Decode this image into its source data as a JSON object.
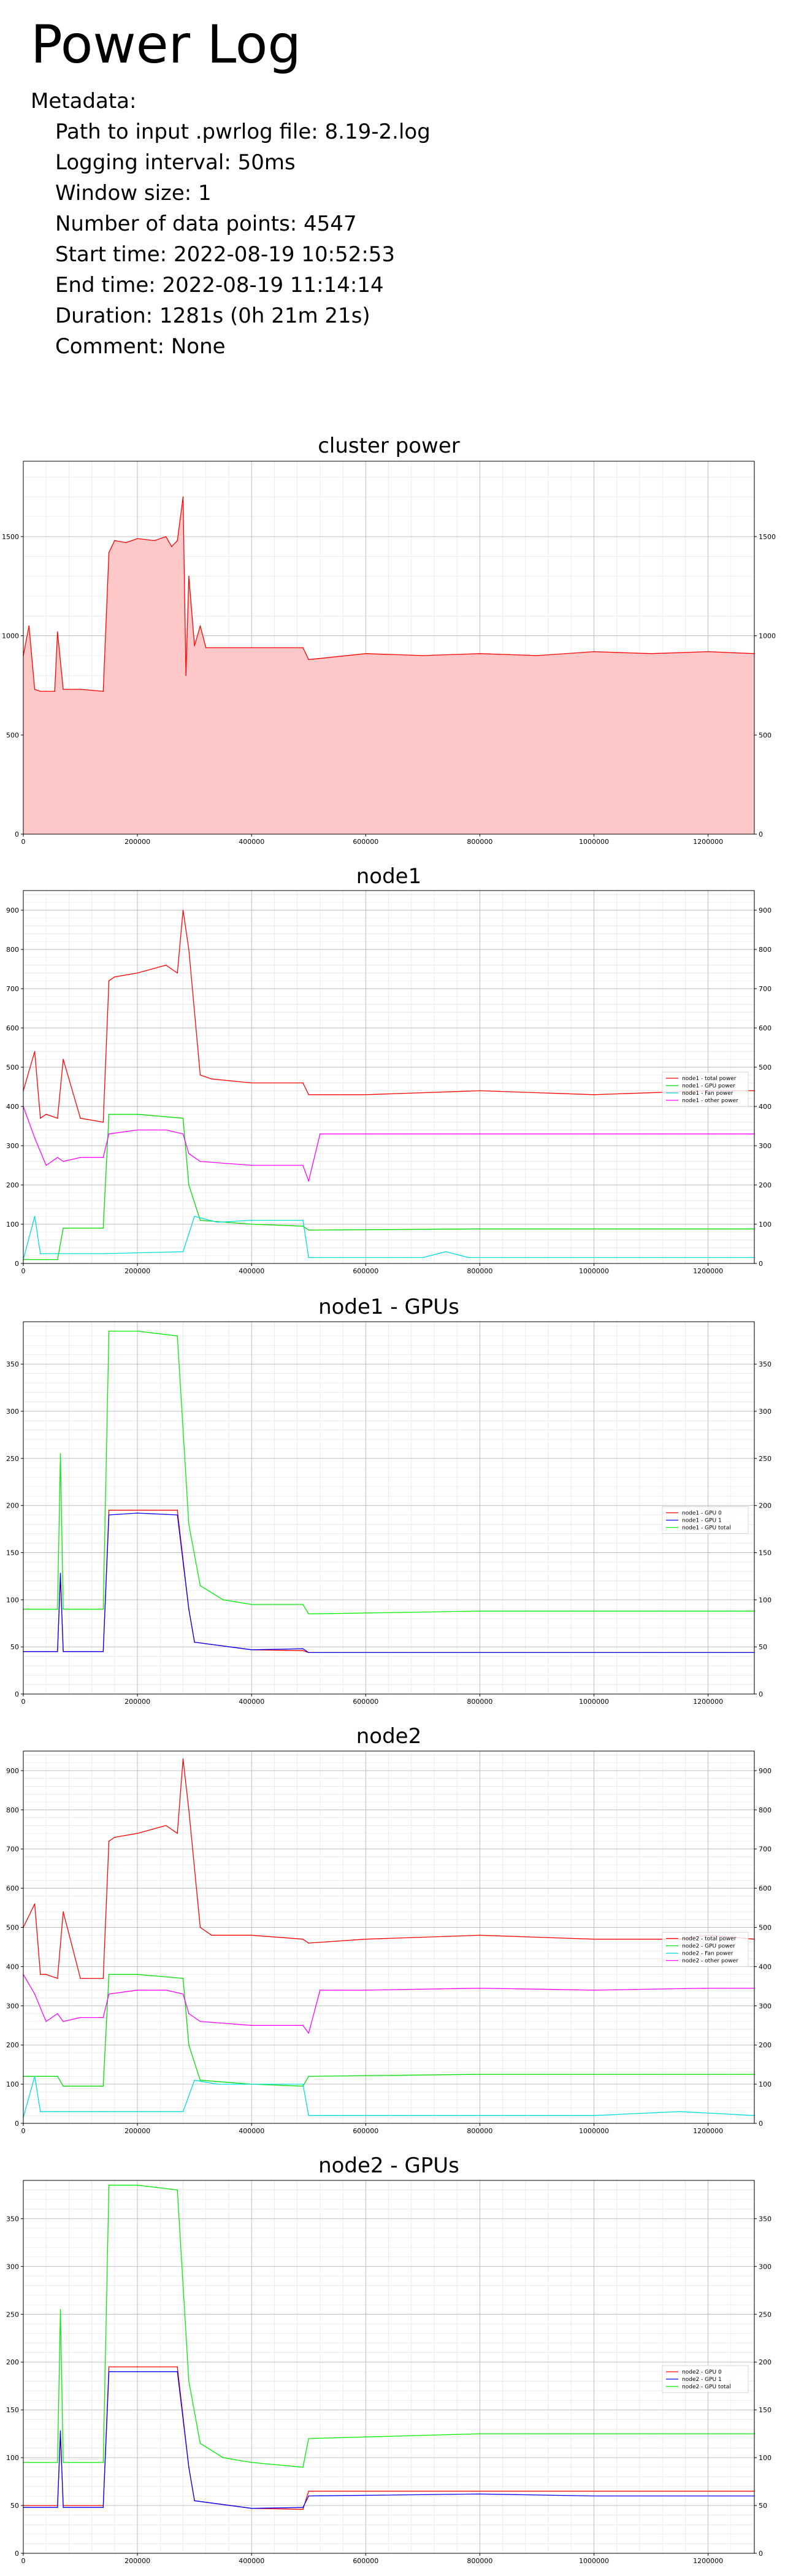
{
  "page": {
    "title": "Power Log"
  },
  "metadata": {
    "heading": "Metadata:",
    "lines": [
      "Path to input .pwrlog file: 8.19-2.log",
      "Logging interval: 50ms",
      "Window size: 1",
      "Number of data points: 4547",
      "Start time: 2022-08-19 10:52:53",
      "End time: 2022-08-19 11:14:14",
      "Duration: 1281s  (0h 21m 21s)",
      "Comment: None"
    ]
  },
  "chart_data": [
    {
      "type": "area",
      "title": "cluster power",
      "xlim": [
        0,
        1281000
      ],
      "ylim": [
        0,
        1880
      ],
      "xticks": [
        0,
        200000,
        400000,
        600000,
        800000,
        1000000,
        1200000
      ],
      "yticks": [
        0,
        500,
        1000,
        1500
      ],
      "grid": true,
      "legend": null,
      "series": [
        {
          "color": "#ff0000",
          "fill": "#ffc8c8",
          "x": [
            0,
            10000,
            20000,
            30000,
            40000,
            55000,
            60000,
            70000,
            100000,
            140000,
            150000,
            160000,
            180000,
            200000,
            230000,
            250000,
            260000,
            270000,
            280000,
            285000,
            290000,
            300000,
            310000,
            320000,
            330000,
            340000,
            350000,
            400000,
            450000,
            490000,
            500000,
            600000,
            700000,
            800000,
            900000,
            1000000,
            1100000,
            1200000,
            1281000
          ],
          "y": [
            900,
            1050,
            730,
            720,
            720,
            720,
            1020,
            730,
            730,
            720,
            1420,
            1480,
            1470,
            1490,
            1480,
            1500,
            1450,
            1480,
            1700,
            800,
            1300,
            950,
            1050,
            940,
            940,
            940,
            940,
            940,
            940,
            940,
            880,
            910,
            900,
            910,
            900,
            920,
            910,
            920,
            910
          ]
        }
      ]
    },
    {
      "type": "line",
      "title": "node1",
      "xlim": [
        0,
        1281000
      ],
      "ylim": [
        0,
        950
      ],
      "xticks": [
        0,
        200000,
        400000,
        600000,
        800000,
        1000000,
        1200000
      ],
      "yticks": [
        0,
        100,
        200,
        300,
        400,
        500,
        600,
        700,
        800,
        900
      ],
      "grid": true,
      "legend": "right",
      "series": [
        {
          "name": "node1 - total power",
          "color": "#ff0000",
          "x": [
            0,
            20000,
            30000,
            40000,
            60000,
            70000,
            100000,
            140000,
            150000,
            160000,
            200000,
            250000,
            270000,
            280000,
            290000,
            310000,
            330000,
            400000,
            490000,
            500000,
            600000,
            800000,
            1000000,
            1200000,
            1281000
          ],
          "y": [
            440,
            540,
            370,
            380,
            370,
            520,
            370,
            360,
            720,
            730,
            740,
            760,
            740,
            900,
            800,
            480,
            470,
            460,
            460,
            430,
            430,
            440,
            430,
            440,
            440
          ]
        },
        {
          "name": "node1 - GPU power",
          "color": "#00dd00",
          "x": [
            0,
            60000,
            70000,
            140000,
            150000,
            200000,
            280000,
            290000,
            310000,
            400000,
            490000,
            500000,
            800000,
            1281000
          ],
          "y": [
            10,
            10,
            90,
            90,
            380,
            380,
            370,
            200,
            110,
            100,
            95,
            85,
            88,
            88
          ]
        },
        {
          "name": "node1 - Fan power",
          "color": "#00dddd",
          "x": [
            0,
            20000,
            30000,
            60000,
            140000,
            280000,
            300000,
            340000,
            400000,
            490000,
            500000,
            700000,
            740000,
            780000,
            1000000,
            1281000
          ],
          "y": [
            10,
            120,
            25,
            25,
            25,
            30,
            120,
            105,
            110,
            110,
            15,
            15,
            30,
            15,
            15,
            15
          ]
        },
        {
          "name": "node1 - other power",
          "color": "#ff00ff",
          "x": [
            0,
            20000,
            40000,
            60000,
            70000,
            100000,
            140000,
            150000,
            200000,
            250000,
            280000,
            290000,
            310000,
            400000,
            490000,
            500000,
            520000,
            600000,
            800000,
            1000000,
            1200000,
            1281000
          ],
          "y": [
            400,
            320,
            250,
            270,
            260,
            270,
            270,
            330,
            340,
            340,
            330,
            280,
            260,
            250,
            250,
            210,
            330,
            330,
            330,
            330,
            330,
            330
          ]
        }
      ]
    },
    {
      "type": "line",
      "title": "node1 - GPUs",
      "xlim": [
        0,
        1281000
      ],
      "ylim": [
        0,
        395
      ],
      "xticks": [
        0,
        200000,
        400000,
        600000,
        800000,
        1000000,
        1200000
      ],
      "yticks": [
        0,
        50,
        100,
        150,
        200,
        250,
        300,
        350
      ],
      "grid": true,
      "legend": "right",
      "series": [
        {
          "name": "node1 - GPU 0",
          "color": "#ff0000",
          "x": [
            0,
            60000,
            65000,
            70000,
            140000,
            150000,
            200000,
            270000,
            290000,
            300000,
            400000,
            490000,
            500000,
            1281000
          ],
          "y": [
            45,
            45,
            125,
            45,
            45,
            195,
            195,
            195,
            90,
            55,
            47,
            46,
            44,
            44
          ]
        },
        {
          "name": "node1 - GPU 1",
          "color": "#0000ff",
          "x": [
            0,
            60000,
            65000,
            70000,
            140000,
            150000,
            200000,
            270000,
            290000,
            300000,
            400000,
            490000,
            500000,
            1281000
          ],
          "y": [
            45,
            45,
            128,
            45,
            45,
            190,
            192,
            190,
            90,
            55,
            47,
            48,
            44,
            44
          ]
        },
        {
          "name": "node1 - GPU total",
          "color": "#00ee00",
          "x": [
            0,
            60000,
            65000,
            70000,
            140000,
            150000,
            200000,
            270000,
            290000,
            310000,
            350000,
            400000,
            490000,
            500000,
            800000,
            1281000
          ],
          "y": [
            90,
            90,
            255,
            90,
            90,
            385,
            385,
            380,
            180,
            115,
            100,
            95,
            95,
            85,
            88,
            88
          ]
        }
      ]
    },
    {
      "type": "line",
      "title": "node2",
      "xlim": [
        0,
        1281000
      ],
      "ylim": [
        0,
        950
      ],
      "xticks": [
        0,
        200000,
        400000,
        600000,
        800000,
        1000000,
        1200000
      ],
      "yticks": [
        0,
        100,
        200,
        300,
        400,
        500,
        600,
        700,
        800,
        900
      ],
      "grid": true,
      "legend": "right",
      "series": [
        {
          "name": "node2 - total power",
          "color": "#ff0000",
          "x": [
            0,
            20000,
            30000,
            40000,
            60000,
            70000,
            100000,
            140000,
            150000,
            160000,
            200000,
            250000,
            270000,
            280000,
            290000,
            310000,
            330000,
            400000,
            490000,
            500000,
            600000,
            800000,
            1000000,
            1150000,
            1200000,
            1281000
          ],
          "y": [
            500,
            560,
            380,
            380,
            370,
            540,
            370,
            370,
            720,
            730,
            740,
            760,
            740,
            930,
            800,
            500,
            480,
            480,
            470,
            460,
            470,
            480,
            470,
            470,
            480,
            470
          ]
        },
        {
          "name": "node2 - GPU power",
          "color": "#00dd00",
          "x": [
            0,
            60000,
            70000,
            140000,
            150000,
            200000,
            280000,
            290000,
            310000,
            400000,
            490000,
            500000,
            800000,
            1000000,
            1281000
          ],
          "y": [
            120,
            120,
            95,
            95,
            380,
            380,
            370,
            200,
            110,
            100,
            95,
            120,
            125,
            125,
            125
          ]
        },
        {
          "name": "node2 - Fan power",
          "color": "#00dddd",
          "x": [
            0,
            20000,
            30000,
            60000,
            140000,
            280000,
            300000,
            340000,
            400000,
            490000,
            500000,
            700000,
            1000000,
            1150000,
            1281000
          ],
          "y": [
            15,
            120,
            30,
            30,
            30,
            30,
            110,
            100,
            100,
            100,
            20,
            20,
            20,
            30,
            20
          ]
        },
        {
          "name": "node2 - other power",
          "color": "#ff00ff",
          "x": [
            0,
            20000,
            40000,
            60000,
            70000,
            100000,
            140000,
            150000,
            200000,
            250000,
            280000,
            290000,
            310000,
            400000,
            490000,
            500000,
            520000,
            600000,
            800000,
            1000000,
            1200000,
            1281000
          ],
          "y": [
            380,
            330,
            260,
            280,
            260,
            270,
            270,
            330,
            340,
            340,
            330,
            280,
            260,
            250,
            250,
            230,
            340,
            340,
            345,
            340,
            345,
            345
          ]
        }
      ]
    },
    {
      "type": "line",
      "title": "node2 - GPUs",
      "xlim": [
        0,
        1281000
      ],
      "ylim": [
        0,
        390
      ],
      "xticks": [
        0,
        200000,
        400000,
        600000,
        800000,
        1000000,
        1200000
      ],
      "yticks": [
        0,
        50,
        100,
        150,
        200,
        250,
        300,
        350
      ],
      "grid": true,
      "legend": "right",
      "series": [
        {
          "name": "node2 - GPU 0",
          "color": "#ff0000",
          "x": [
            0,
            60000,
            65000,
            70000,
            140000,
            150000,
            200000,
            270000,
            290000,
            300000,
            400000,
            490000,
            500000,
            800000,
            1000000,
            1281000
          ],
          "y": [
            50,
            50,
            125,
            50,
            50,
            195,
            195,
            195,
            90,
            55,
            47,
            46,
            65,
            65,
            65,
            65
          ]
        },
        {
          "name": "node2 - GPU 1",
          "color": "#0000ff",
          "x": [
            0,
            60000,
            65000,
            70000,
            140000,
            150000,
            200000,
            270000,
            290000,
            300000,
            400000,
            490000,
            500000,
            800000,
            1000000,
            1281000
          ],
          "y": [
            48,
            48,
            128,
            48,
            48,
            190,
            190,
            190,
            90,
            55,
            47,
            48,
            60,
            62,
            60,
            60
          ]
        },
        {
          "name": "node2 - GPU total",
          "color": "#00ee00",
          "x": [
            0,
            60000,
            65000,
            70000,
            140000,
            150000,
            200000,
            270000,
            290000,
            310000,
            350000,
            400000,
            490000,
            500000,
            800000,
            1000000,
            1281000
          ],
          "y": [
            95,
            95,
            255,
            95,
            95,
            385,
            385,
            380,
            180,
            115,
            100,
            95,
            90,
            120,
            125,
            125,
            125
          ]
        }
      ]
    }
  ]
}
